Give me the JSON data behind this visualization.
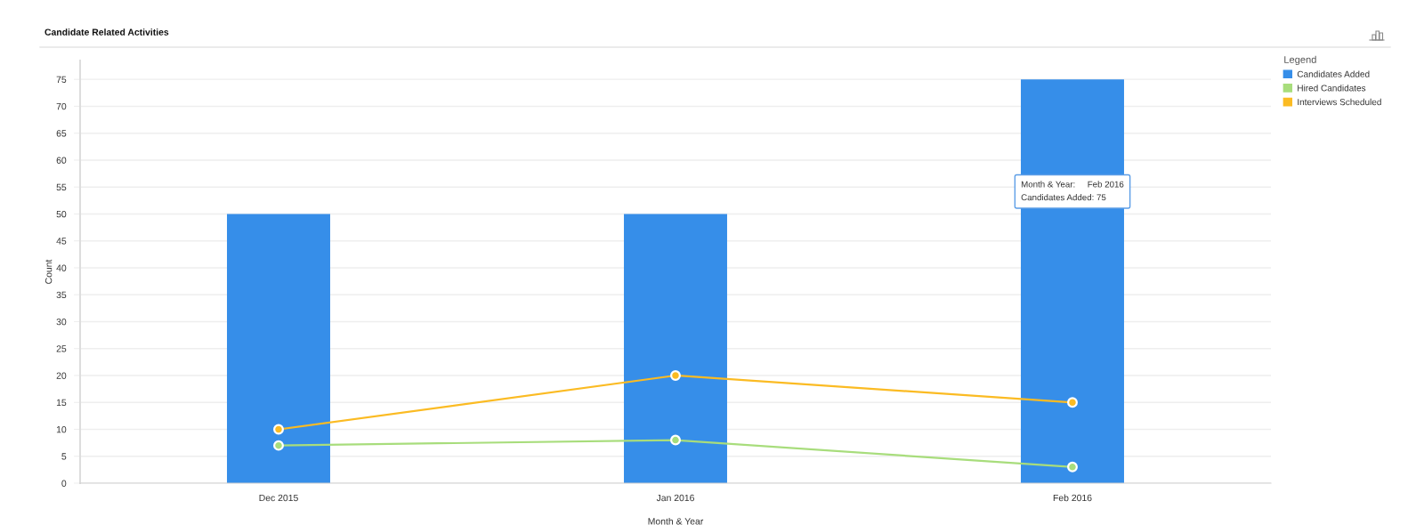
{
  "chart_data": {
    "type": "bar",
    "title": "Candidate Related Activities",
    "xlabel": "Month & Year",
    "ylabel": "Count",
    "legend_title": "Legend",
    "categories": [
      "Dec 2015",
      "Jan 2016",
      "Feb 2016"
    ],
    "series": [
      {
        "name": "Candidates Added",
        "color": "#368ee9",
        "values": [
          50,
          50,
          75
        ]
      },
      {
        "name": "Hired Candidates",
        "type": "line",
        "color": "#a8dd7c",
        "values": [
          7,
          8,
          3
        ]
      },
      {
        "name": "Interviews Scheduled",
        "type": "line",
        "color": "#fbbb23",
        "values": [
          10,
          20,
          15
        ]
      }
    ],
    "ylim": [
      0,
      78.5
    ],
    "yticks": [
      0,
      5,
      10,
      15,
      20,
      25,
      30,
      35,
      40,
      45,
      50,
      55,
      60,
      65,
      70,
      75
    ],
    "grid": "y",
    "legend": "top right",
    "marker": "circle",
    "line_style": "solid",
    "annotations": [
      "Month & Year:     Feb 2016\nCandidates Added: 75"
    ]
  }
}
